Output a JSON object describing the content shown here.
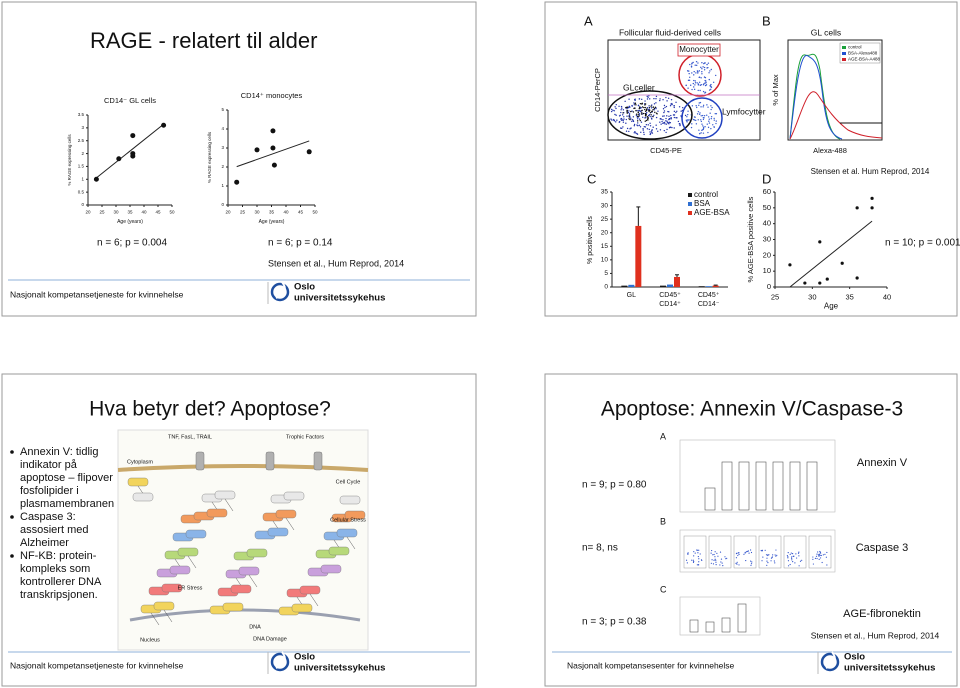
{
  "slides": [
    {
      "title": "RAGE - relatert til alder",
      "plots": [
        {
          "title": "CD14⁻ GL cells",
          "x_label": "Age (years)",
          "y_label": "% RAGE expressing cells",
          "xlim": [
            20,
            50
          ],
          "xticks": [
            20,
            25,
            30,
            35,
            40,
            45,
            50
          ],
          "ylim": [
            0,
            3.5
          ],
          "yticks": [
            0,
            0.5,
            1,
            1.5,
            2,
            2.5,
            3,
            3.5
          ],
          "x": [
            23,
            31,
            36,
            36,
            36,
            47
          ],
          "y": [
            1,
            1.8,
            2.7,
            2,
            1.9,
            3.1
          ],
          "stat": "n = 6; p = 0.004"
        },
        {
          "title": "CD14⁺ monocytes",
          "x_label": "Age (years)",
          "y_label": "% RAGE expressing cells",
          "xlim": [
            20,
            50
          ],
          "xticks": [
            20,
            25,
            30,
            35,
            40,
            45,
            50
          ],
          "ylim": [
            0,
            5
          ],
          "yticks": [
            0,
            1,
            2,
            3,
            4,
            5
          ],
          "x": [
            23,
            30,
            35.5,
            35.5,
            36,
            48
          ],
          "y": [
            1.2,
            2.9,
            3.9,
            3,
            2.1,
            2.8
          ],
          "stat": "n = 6; p = 0.14"
        }
      ],
      "citation": "Stensen et al., Hum Reprod, 2014",
      "footer": "Nasjonalt kompetansetjeneste for kvinnehelse",
      "logo": [
        "Oslo",
        "universitetssykehus"
      ]
    },
    {
      "citation": "Stensen et al. Hum Reprod, 2014",
      "A": {
        "letter": "A",
        "title": "Follicular fluid-derived cells",
        "y_label": "CD14-PerCP",
        "x_label": "CD45-PE",
        "gates": [
          "Monocytter",
          "GLceller",
          "Lymfocytter"
        ]
      },
      "B": {
        "letter": "B",
        "title": "GL cells",
        "y_label": "% of Max",
        "x_label": "Alexa-488",
        "legend": [
          "control",
          "BSA-Alexa488",
          "AGE-BSA-A488"
        ]
      },
      "C": {
        "letter": "C",
        "type": "bar",
        "y_label": "% positive cells",
        "ylim": [
          0,
          35
        ],
        "yticks": [
          0,
          5,
          10,
          15,
          20,
          25,
          30,
          35
        ],
        "categories": [
          [
            "GL"
          ],
          [
            "CD45⁺",
            "CD14⁺"
          ],
          [
            "CD45⁺",
            "CD14⁻"
          ]
        ],
        "series": [
          {
            "name": "control",
            "color": "#1a1a1a",
            "values": [
              0.5,
              0.5,
              0.3
            ]
          },
          {
            "name": "BSA",
            "color": "#2f6fd1",
            "values": [
              0.8,
              0.9,
              0.3
            ]
          },
          {
            "name": "AGE-BSA",
            "color": "#e0301e",
            "values": [
              22.5,
              3.7,
              0.5
            ],
            "errors": [
              7,
              0.8,
              0.2
            ]
          }
        ]
      },
      "D": {
        "letter": "D",
        "type": "scatter",
        "y_label": "% AGE-BSA positive cells",
        "x_label": "Age",
        "xlim": [
          25,
          40
        ],
        "xticks": [
          25,
          30,
          35,
          40
        ],
        "ylim": [
          0,
          60
        ],
        "yticks": [
          0,
          10,
          20,
          30,
          40,
          50,
          60
        ],
        "x": [
          27,
          29,
          31,
          31,
          32,
          34,
          36,
          36,
          38,
          38
        ],
        "y": [
          14,
          2.5,
          28.5,
          2.5,
          5,
          15,
          5.7,
          50,
          56,
          50
        ],
        "stat": "n = 10; p = 0.001"
      }
    },
    {
      "title": "Hva betyr det? Apoptose?",
      "bullets": [
        [
          "Annexin V: tidlig",
          "indikator på",
          "apoptose – flipover",
          "fosfolipider i",
          "plasmamembranen"
        ],
        [
          "Caspase 3:",
          "assosiert med",
          "Alzheimer"
        ],
        [
          "NF-KB: protein-",
          "kompleks som",
          "kontrollerer DNA",
          "transkripsjonen."
        ]
      ],
      "diagram_labels": [
        "TNF, FasL, TRAIL",
        "Trophic Factors",
        "Cytoplasm",
        "Cell Cycle",
        "Cellular Stress",
        "ER Stress",
        "DNA",
        "DNA Damage",
        "Nucleus"
      ],
      "footer": "Nasjonalt kompetansetjeneste for kvinnehelse",
      "logo": [
        "Oslo",
        "universitetssykehus"
      ]
    },
    {
      "title": "Apoptose: Annexin V/Caspase-3",
      "results": [
        {
          "letter": "A",
          "stat": "n = 9; p = 0.80",
          "label": "Annexin V"
        },
        {
          "letter": "B",
          "stat": "n= 8, ns",
          "label": "Caspase 3"
        },
        {
          "letter": "C",
          "stat": "n = 3; p = 0.38",
          "label": "AGE-fibronektin"
        }
      ],
      "citation": "Stensen et al., Hum Reprod, 2014",
      "footer": "Nasjonalt kompetansesenter for kvinnehelse",
      "logo": [
        "Oslo",
        "universitetssykehus"
      ]
    }
  ]
}
